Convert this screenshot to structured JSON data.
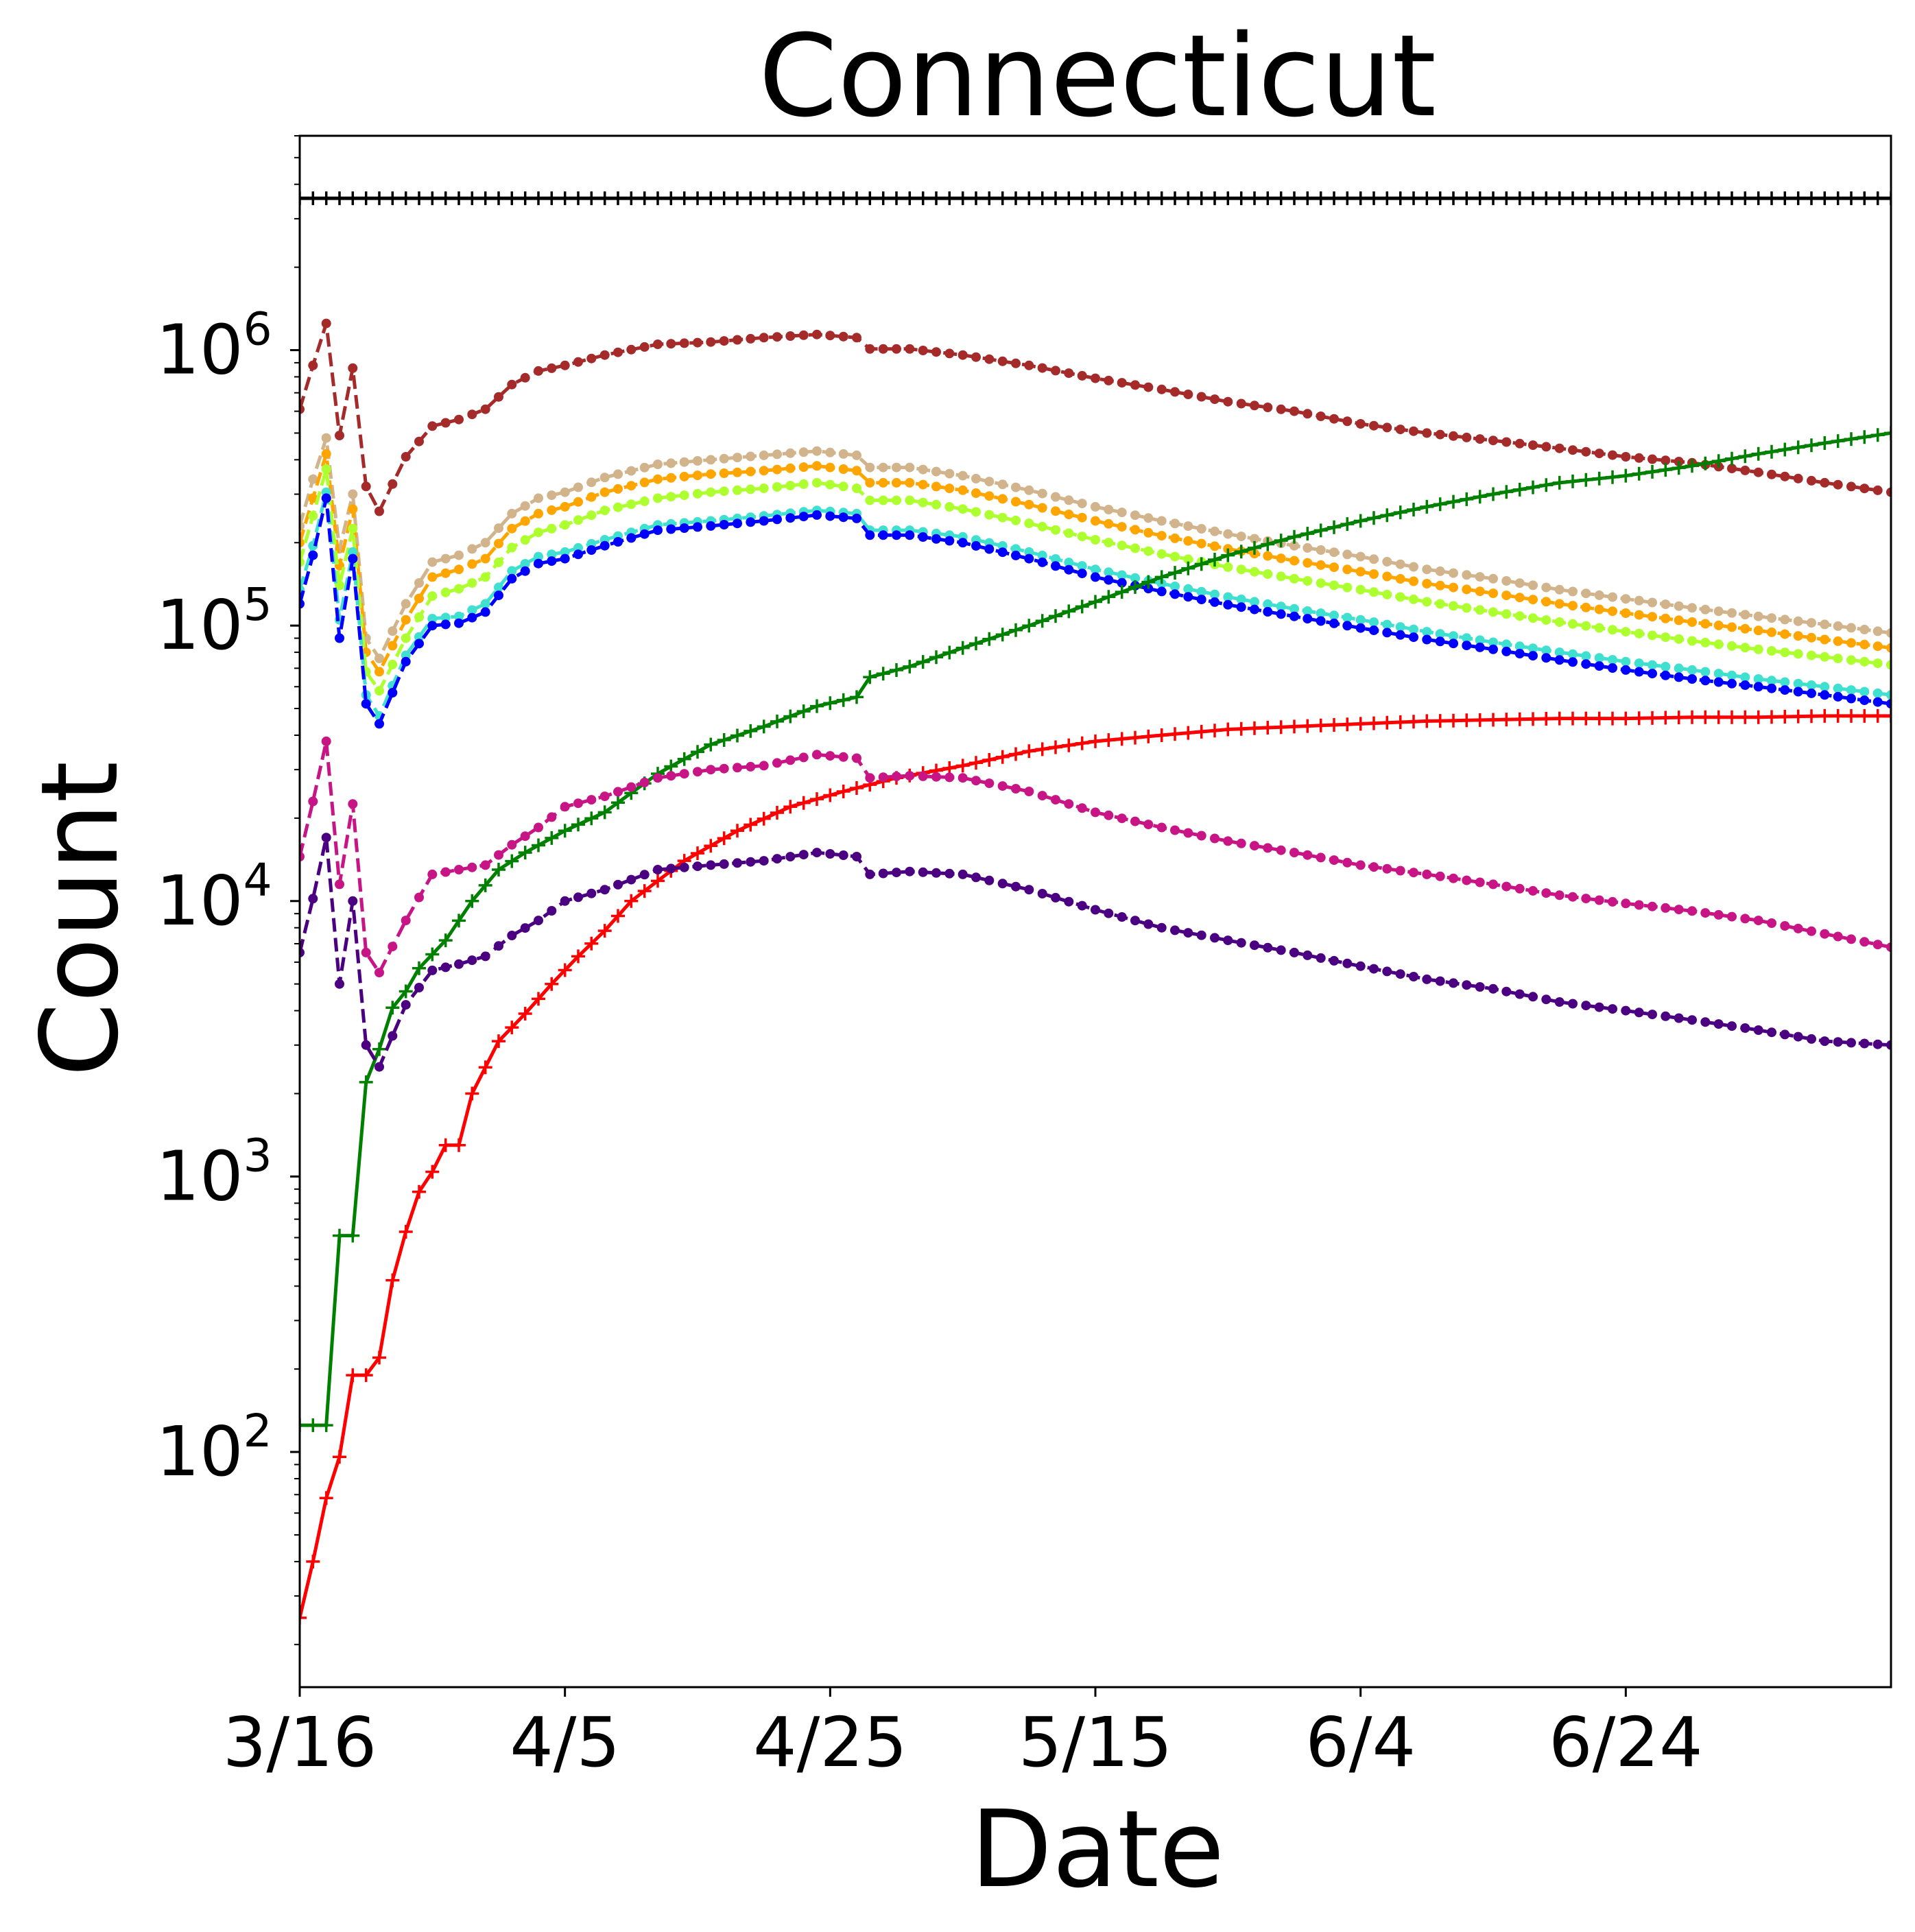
{
  "chart_data": {
    "type": "line",
    "title": "Connecticut",
    "xlabel": "Date",
    "ylabel": "Count",
    "yscale": "log",
    "ylim": [
      14,
      6000000
    ],
    "xlim": [
      "2020-03-16",
      "2020-07-14"
    ],
    "x_ticks": [
      {
        "label": "3/16",
        "date": "2020-03-16"
      },
      {
        "label": "4/5",
        "date": "2020-04-05"
      },
      {
        "label": "4/25",
        "date": "2020-04-25"
      },
      {
        "label": "5/15",
        "date": "2020-05-15"
      },
      {
        "label": "6/4",
        "date": "2020-06-04"
      },
      {
        "label": "6/24",
        "date": "2020-06-24"
      }
    ],
    "y_ticks": [
      {
        "base": "10",
        "exp": "2",
        "value": 100
      },
      {
        "base": "10",
        "exp": "3",
        "value": 1000
      },
      {
        "base": "10",
        "exp": "4",
        "value": 10000
      },
      {
        "base": "10",
        "exp": "5",
        "value": 100000
      },
      {
        "base": "10",
        "exp": "6",
        "value": 1000000
      }
    ],
    "grid": false,
    "legend": false,
    "series": [
      {
        "color": "#000000",
        "style": "solid",
        "marker": "plus",
        "dates": [
          "2020-03-16",
          "2020-07-14"
        ],
        "values": [
          3560000,
          3560000
        ]
      },
      {
        "color": "#a52a2a",
        "style": "dashed",
        "marker": "dot",
        "dates": [
          "2020-03-16",
          "2020-03-17",
          "2020-03-18",
          "2020-03-19",
          "2020-03-20",
          "2020-03-21",
          "2020-03-22",
          "2020-03-24",
          "2020-03-26",
          "2020-03-28",
          "2020-03-30",
          "2020-04-01",
          "2020-04-03",
          "2020-04-05",
          "2020-04-08",
          "2020-04-12",
          "2020-04-16",
          "2020-04-20",
          "2020-04-24",
          "2020-04-27",
          "2020-04-28",
          "2020-05-01",
          "2020-05-05",
          "2020-05-10",
          "2020-05-15",
          "2020-05-20",
          "2020-05-25",
          "2020-05-30",
          "2020-06-04",
          "2020-06-09",
          "2020-06-14",
          "2020-06-19",
          "2020-06-24",
          "2020-06-29",
          "2020-07-04",
          "2020-07-09",
          "2020-07-14"
        ],
        "values": [
          610000,
          880000,
          1250000,
          490000,
          860000,
          320000,
          260000,
          410000,
          530000,
          560000,
          610000,
          750000,
          840000,
          880000,
          960000,
          1050000,
          1070000,
          1110000,
          1140000,
          1110000,
          1010000,
          1010000,
          960000,
          880000,
          790000,
          720000,
          650000,
          600000,
          540000,
          500000,
          470000,
          440000,
          410000,
          390000,
          360000,
          330000,
          305000
        ]
      },
      {
        "color": "#d2b48c",
        "style": "dashed",
        "marker": "dot",
        "dates": [
          "2020-03-16",
          "2020-03-17",
          "2020-03-18",
          "2020-03-19",
          "2020-03-20",
          "2020-03-21",
          "2020-03-22",
          "2020-03-24",
          "2020-03-26",
          "2020-03-28",
          "2020-03-30",
          "2020-04-01",
          "2020-04-03",
          "2020-04-05",
          "2020-04-08",
          "2020-04-12",
          "2020-04-16",
          "2020-04-20",
          "2020-04-24",
          "2020-04-27",
          "2020-04-28",
          "2020-05-01",
          "2020-05-05",
          "2020-05-10",
          "2020-05-15",
          "2020-05-20",
          "2020-05-25",
          "2020-05-30",
          "2020-06-04",
          "2020-06-09",
          "2020-06-14",
          "2020-06-19",
          "2020-06-24",
          "2020-06-29",
          "2020-07-04",
          "2020-07-09",
          "2020-07-14"
        ],
        "values": [
          230000,
          340000,
          480000,
          190000,
          300000,
          90000,
          76000,
          120000,
          170000,
          180000,
          200000,
          255000,
          290000,
          305000,
          345000,
          385000,
          400000,
          415000,
          430000,
          415000,
          375000,
          375000,
          350000,
          310000,
          270000,
          240000,
          215000,
          195000,
          178000,
          160000,
          148000,
          135000,
          125000,
          116000,
          108000,
          101000,
          94000
        ]
      },
      {
        "color": "#ffa500",
        "style": "dashed",
        "marker": "dot",
        "dates": [
          "2020-03-16",
          "2020-03-17",
          "2020-03-18",
          "2020-03-19",
          "2020-03-20",
          "2020-03-21",
          "2020-03-22",
          "2020-03-24",
          "2020-03-26",
          "2020-03-28",
          "2020-03-30",
          "2020-04-01",
          "2020-04-03",
          "2020-04-05",
          "2020-04-08",
          "2020-04-12",
          "2020-04-16",
          "2020-04-20",
          "2020-04-24",
          "2020-04-27",
          "2020-04-28",
          "2020-05-01",
          "2020-05-05",
          "2020-05-10",
          "2020-05-15",
          "2020-05-20",
          "2020-05-25",
          "2020-05-30",
          "2020-06-04",
          "2020-06-09",
          "2020-06-14",
          "2020-06-19",
          "2020-06-24",
          "2020-06-29",
          "2020-07-04",
          "2020-07-09",
          "2020-07-14"
        ],
        "values": [
          200000,
          290000,
          420000,
          165000,
          265000,
          80000,
          68000,
          105000,
          150000,
          160000,
          175000,
          225000,
          255000,
          270000,
          305000,
          340000,
          355000,
          365000,
          380000,
          365000,
          330000,
          330000,
          310000,
          275000,
          240000,
          212000,
          190000,
          172000,
          157000,
          142000,
          131000,
          120000,
          111000,
          103000,
          96000,
          89000,
          83000
        ]
      },
      {
        "color": "#adff2f",
        "style": "dashed",
        "marker": "dot",
        "dates": [
          "2020-03-16",
          "2020-03-17",
          "2020-03-18",
          "2020-03-19",
          "2020-03-20",
          "2020-03-21",
          "2020-03-22",
          "2020-03-24",
          "2020-03-26",
          "2020-03-28",
          "2020-03-30",
          "2020-04-01",
          "2020-04-03",
          "2020-04-05",
          "2020-04-08",
          "2020-04-12",
          "2020-04-16",
          "2020-04-20",
          "2020-04-24",
          "2020-04-27",
          "2020-04-28",
          "2020-05-01",
          "2020-05-05",
          "2020-05-10",
          "2020-05-15",
          "2020-05-20",
          "2020-05-25",
          "2020-05-30",
          "2020-06-04",
          "2020-06-09",
          "2020-06-14",
          "2020-06-19",
          "2020-06-24",
          "2020-06-29",
          "2020-07-04",
          "2020-07-09",
          "2020-07-14"
        ],
        "values": [
          170000,
          250000,
          370000,
          140000,
          225000,
          68000,
          58000,
          90000,
          128000,
          136000,
          150000,
          192000,
          218000,
          232000,
          262000,
          290000,
          305000,
          315000,
          330000,
          315000,
          285000,
          285000,
          265000,
          235000,
          205000,
          182000,
          163000,
          148000,
          135000,
          122000,
          112000,
          103000,
          95000,
          88000,
          82000,
          77000,
          72000
        ]
      },
      {
        "color": "#40e0d0",
        "style": "dashed",
        "marker": "dot",
        "dates": [
          "2020-03-16",
          "2020-03-17",
          "2020-03-18",
          "2020-03-19",
          "2020-03-20",
          "2020-03-21",
          "2020-03-22",
          "2020-03-24",
          "2020-03-26",
          "2020-03-28",
          "2020-03-30",
          "2020-04-01",
          "2020-04-03",
          "2020-04-05",
          "2020-04-08",
          "2020-04-12",
          "2020-04-16",
          "2020-04-20",
          "2020-04-24",
          "2020-04-27",
          "2020-04-28",
          "2020-05-01",
          "2020-05-05",
          "2020-05-10",
          "2020-05-15",
          "2020-05-20",
          "2020-05-25",
          "2020-05-30",
          "2020-06-04",
          "2020-06-09",
          "2020-06-14",
          "2020-06-19",
          "2020-06-24",
          "2020-06-29",
          "2020-07-04",
          "2020-07-09",
          "2020-07-14"
        ],
        "values": [
          135000,
          195000,
          305000,
          105000,
          185000,
          56000,
          47000,
          78000,
          106000,
          108000,
          120000,
          158000,
          178000,
          185000,
          205000,
          232000,
          240000,
          250000,
          262000,
          255000,
          222000,
          222000,
          210000,
          185000,
          160000,
          142000,
          127000,
          115000,
          105000,
          95000,
          87000,
          80000,
          74000,
          69000,
          64000,
          60000,
          56000
        ]
      },
      {
        "color": "#0000ff",
        "style": "dashed",
        "marker": "dot",
        "dates": [
          "2020-03-16",
          "2020-03-17",
          "2020-03-18",
          "2020-03-19",
          "2020-03-20",
          "2020-03-21",
          "2020-03-22",
          "2020-03-24",
          "2020-03-26",
          "2020-03-28",
          "2020-03-30",
          "2020-04-01",
          "2020-04-03",
          "2020-04-05",
          "2020-04-08",
          "2020-04-12",
          "2020-04-16",
          "2020-04-20",
          "2020-04-24",
          "2020-04-27",
          "2020-04-28",
          "2020-05-01",
          "2020-05-05",
          "2020-05-10",
          "2020-05-15",
          "2020-05-20",
          "2020-05-25",
          "2020-05-30",
          "2020-06-04",
          "2020-06-09",
          "2020-06-14",
          "2020-06-19",
          "2020-06-24",
          "2020-06-29",
          "2020-07-04",
          "2020-07-09",
          "2020-07-14"
        ],
        "values": [
          120000,
          180000,
          290000,
          90000,
          175000,
          52000,
          44000,
          74000,
          100000,
          102000,
          112000,
          148000,
          168000,
          175000,
          195000,
          222000,
          230000,
          240000,
          252000,
          245000,
          213000,
          213000,
          200000,
          175000,
          150000,
          133000,
          119000,
          108000,
          98000,
          89000,
          82000,
          75000,
          69000,
          64000,
          60000,
          56000,
          52000
        ]
      },
      {
        "color": "#008000",
        "style": "solid",
        "marker": "plus",
        "dates": [
          "2020-03-16",
          "2020-03-18",
          "2020-03-19",
          "2020-03-20",
          "2020-03-21",
          "2020-03-22",
          "2020-03-23",
          "2020-03-24",
          "2020-03-25",
          "2020-03-27",
          "2020-03-29",
          "2020-03-31",
          "2020-04-02",
          "2020-04-05",
          "2020-04-08",
          "2020-04-12",
          "2020-04-16",
          "2020-04-20",
          "2020-04-24",
          "2020-04-27",
          "2020-04-28",
          "2020-05-01",
          "2020-05-05",
          "2020-05-10",
          "2020-05-15",
          "2020-05-20",
          "2020-05-25",
          "2020-05-30",
          "2020-06-04",
          "2020-06-09",
          "2020-06-14",
          "2020-06-19",
          "2020-06-24",
          "2020-06-29",
          "2020-07-04",
          "2020-07-09",
          "2020-07-14"
        ],
        "values": [
          125,
          125,
          610,
          610,
          2200,
          2900,
          4100,
          4700,
          5700,
          7200,
          10000,
          13000,
          15000,
          18000,
          21000,
          29000,
          37000,
          43000,
          51000,
          55000,
          65000,
          71000,
          83000,
          100000,
          122000,
          150000,
          180000,
          210000,
          240000,
          270000,
          300000,
          330000,
          350000,
          380000,
          420000,
          460000,
          500000
        ]
      },
      {
        "color": "#ff0000",
        "style": "solid",
        "marker": "plus",
        "dates": [
          "2020-03-16",
          "2020-03-17",
          "2020-03-18",
          "2020-03-19",
          "2020-03-20",
          "2020-03-21",
          "2020-03-22",
          "2020-03-23",
          "2020-03-24",
          "2020-03-25",
          "2020-03-26",
          "2020-03-27",
          "2020-03-28",
          "2020-03-29",
          "2020-03-31",
          "2020-04-02",
          "2020-04-04",
          "2020-04-06",
          "2020-04-08",
          "2020-04-10",
          "2020-04-14",
          "2020-04-18",
          "2020-04-22",
          "2020-04-26",
          "2020-04-30",
          "2020-05-05",
          "2020-05-10",
          "2020-05-15",
          "2020-05-20",
          "2020-05-25",
          "2020-05-30",
          "2020-06-04",
          "2020-06-09",
          "2020-06-14",
          "2020-06-19",
          "2020-06-24",
          "2020-06-29",
          "2020-07-04",
          "2020-07-09",
          "2020-07-14"
        ],
        "values": [
          25,
          40,
          68,
          96,
          190,
          190,
          220,
          420,
          630,
          880,
          1040,
          1300,
          1300,
          2000,
          3100,
          3900,
          5000,
          6300,
          7800,
          10000,
          14000,
          18000,
          22000,
          25000,
          28000,
          31000,
          35000,
          38000,
          40000,
          42000,
          43000,
          44000,
          45000,
          45500,
          46000,
          46000,
          46500,
          46500,
          47000,
          47000
        ]
      },
      {
        "color": "#c71585",
        "style": "dashed",
        "marker": "dot",
        "dates": [
          "2020-03-16",
          "2020-03-17",
          "2020-03-18",
          "2020-03-19",
          "2020-03-20",
          "2020-03-21",
          "2020-03-22",
          "2020-03-24",
          "2020-03-26",
          "2020-03-28",
          "2020-03-30",
          "2020-04-01",
          "2020-04-03",
          "2020-04-05",
          "2020-04-08",
          "2020-04-12",
          "2020-04-16",
          "2020-04-20",
          "2020-04-24",
          "2020-04-27",
          "2020-04-28",
          "2020-05-01",
          "2020-05-05",
          "2020-05-10",
          "2020-05-15",
          "2020-05-20",
          "2020-05-25",
          "2020-05-30",
          "2020-06-04",
          "2020-06-09",
          "2020-06-14",
          "2020-06-19",
          "2020-06-24",
          "2020-06-29",
          "2020-07-04",
          "2020-07-09",
          "2020-07-14"
        ],
        "values": [
          14500,
          23000,
          38000,
          11500,
          22500,
          6500,
          5500,
          8500,
          12500,
          13000,
          13500,
          16000,
          18500,
          22000,
          24000,
          28000,
          30000,
          31000,
          34000,
          33000,
          28000,
          28500,
          28000,
          25000,
          21000,
          18500,
          16500,
          15000,
          13500,
          12500,
          11500,
          10500,
          9800,
          9200,
          8500,
          7600,
          6800
        ]
      },
      {
        "color": "#4b0082",
        "style": "dashed",
        "marker": "dot",
        "dates": [
          "2020-03-16",
          "2020-03-17",
          "2020-03-18",
          "2020-03-19",
          "2020-03-20",
          "2020-03-21",
          "2020-03-22",
          "2020-03-24",
          "2020-03-26",
          "2020-03-28",
          "2020-03-30",
          "2020-04-01",
          "2020-04-03",
          "2020-04-05",
          "2020-04-08",
          "2020-04-12",
          "2020-04-16",
          "2020-04-20",
          "2020-04-24",
          "2020-04-27",
          "2020-04-28",
          "2020-05-01",
          "2020-05-05",
          "2020-05-10",
          "2020-05-15",
          "2020-05-20",
          "2020-05-25",
          "2020-05-30",
          "2020-06-04",
          "2020-06-09",
          "2020-06-14",
          "2020-06-19",
          "2020-06-24",
          "2020-06-29",
          "2020-07-04",
          "2020-07-09",
          "2020-07-14"
        ],
        "values": [
          6500,
          10200,
          17000,
          5000,
          10000,
          3000,
          2500,
          4200,
          5600,
          5900,
          6300,
          7500,
          8500,
          10000,
          11000,
          13000,
          13500,
          14000,
          15000,
          14500,
          12500,
          12800,
          12500,
          11000,
          9300,
          8000,
          7200,
          6500,
          5800,
          5200,
          4800,
          4300,
          4000,
          3700,
          3400,
          3100,
          3000
        ]
      }
    ]
  }
}
